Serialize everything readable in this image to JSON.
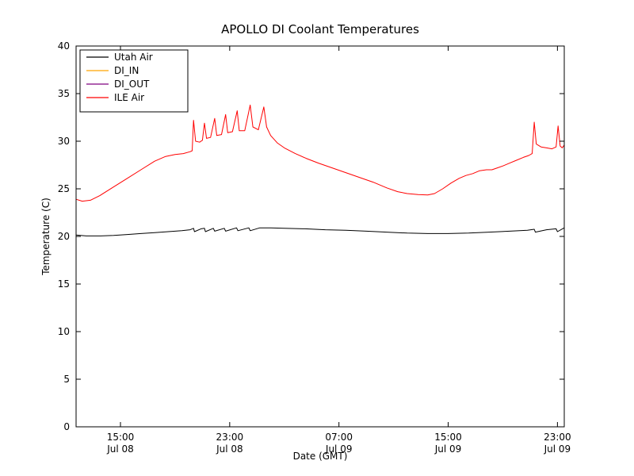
{
  "chart_data": {
    "type": "line",
    "title": "APOLLO DI Coolant Temperatures",
    "xlabel": "Date (GMT)",
    "ylabel": "Temperature (C)",
    "x_unit": "hours since Jul 08 00:00 GMT",
    "xlim": [
      11.75,
      47.5
    ],
    "ylim": [
      0,
      40
    ],
    "grid": false,
    "legend_position": "upper left",
    "yticks": [
      0,
      5,
      10,
      15,
      20,
      25,
      30,
      35,
      40
    ],
    "xticks": [
      {
        "value": 15,
        "label": "15:00",
        "sublabel": "Jul 08"
      },
      {
        "value": 23,
        "label": "23:00",
        "sublabel": "Jul 08"
      },
      {
        "value": 31,
        "label": "07:00",
        "sublabel": "Jul 09"
      },
      {
        "value": 39,
        "label": "15:00",
        "sublabel": "Jul 09"
      },
      {
        "value": 47,
        "label": "23:00",
        "sublabel": "Jul 09"
      }
    ],
    "series": [
      {
        "name": "Utah Air",
        "color": "#000000",
        "points": [
          [
            11.75,
            20.15
          ],
          [
            12.5,
            20.05
          ],
          [
            13.5,
            20.05
          ],
          [
            14.5,
            20.1
          ],
          [
            15.5,
            20.2
          ],
          [
            16.5,
            20.3
          ],
          [
            17.5,
            20.4
          ],
          [
            18.5,
            20.5
          ],
          [
            19.5,
            20.6
          ],
          [
            20.1,
            20.7
          ],
          [
            20.35,
            20.85
          ],
          [
            20.42,
            20.5
          ],
          [
            20.9,
            20.8
          ],
          [
            21.15,
            20.85
          ],
          [
            21.22,
            20.5
          ],
          [
            21.8,
            20.85
          ],
          [
            21.9,
            20.55
          ],
          [
            22.6,
            20.85
          ],
          [
            22.7,
            20.55
          ],
          [
            23.5,
            20.9
          ],
          [
            23.6,
            20.6
          ],
          [
            24.4,
            20.9
          ],
          [
            24.5,
            20.6
          ],
          [
            25.2,
            20.9
          ],
          [
            26.0,
            20.9
          ],
          [
            27.0,
            20.85
          ],
          [
            28.5,
            20.8
          ],
          [
            30.0,
            20.7
          ],
          [
            31.5,
            20.65
          ],
          [
            33.0,
            20.55
          ],
          [
            34.5,
            20.45
          ],
          [
            36.0,
            20.35
          ],
          [
            37.5,
            20.3
          ],
          [
            39.0,
            20.3
          ],
          [
            40.5,
            20.35
          ],
          [
            42.0,
            20.45
          ],
          [
            43.5,
            20.55
          ],
          [
            44.8,
            20.65
          ],
          [
            45.3,
            20.75
          ],
          [
            45.38,
            20.45
          ],
          [
            46.2,
            20.7
          ],
          [
            46.9,
            20.8
          ],
          [
            47.0,
            20.5
          ],
          [
            47.5,
            20.9
          ]
        ]
      },
      {
        "name": "DI_IN",
        "color": "#ffa500",
        "points": []
      },
      {
        "name": "DI_OUT",
        "color": "#800080",
        "points": []
      },
      {
        "name": "ILE Air",
        "color": "#ff0000",
        "points": [
          [
            11.75,
            23.9
          ],
          [
            12.2,
            23.7
          ],
          [
            12.8,
            23.8
          ],
          [
            13.5,
            24.3
          ],
          [
            14.5,
            25.2
          ],
          [
            15.5,
            26.1
          ],
          [
            16.5,
            27.0
          ],
          [
            17.5,
            27.9
          ],
          [
            18.3,
            28.4
          ],
          [
            19.0,
            28.6
          ],
          [
            19.6,
            28.7
          ],
          [
            20.1,
            28.9
          ],
          [
            20.25,
            29.0
          ],
          [
            20.35,
            32.2
          ],
          [
            20.5,
            30.0
          ],
          [
            20.8,
            29.9
          ],
          [
            21.0,
            30.1
          ],
          [
            21.15,
            31.9
          ],
          [
            21.3,
            30.3
          ],
          [
            21.6,
            30.4
          ],
          [
            21.9,
            32.4
          ],
          [
            22.05,
            30.6
          ],
          [
            22.4,
            30.7
          ],
          [
            22.7,
            32.8
          ],
          [
            22.85,
            30.9
          ],
          [
            23.2,
            31.0
          ],
          [
            23.55,
            33.2
          ],
          [
            23.7,
            31.1
          ],
          [
            24.1,
            31.1
          ],
          [
            24.5,
            33.8
          ],
          [
            24.7,
            31.5
          ],
          [
            25.1,
            31.2
          ],
          [
            25.5,
            33.6
          ],
          [
            25.7,
            31.5
          ],
          [
            26.0,
            30.6
          ],
          [
            26.5,
            29.8
          ],
          [
            27.0,
            29.3
          ],
          [
            27.8,
            28.7
          ],
          [
            28.6,
            28.2
          ],
          [
            29.5,
            27.7
          ],
          [
            30.5,
            27.2
          ],
          [
            31.5,
            26.7
          ],
          [
            32.5,
            26.2
          ],
          [
            33.5,
            25.7
          ],
          [
            34.5,
            25.1
          ],
          [
            35.3,
            24.7
          ],
          [
            36.0,
            24.5
          ],
          [
            36.8,
            24.4
          ],
          [
            37.5,
            24.35
          ],
          [
            38.0,
            24.5
          ],
          [
            38.6,
            25.0
          ],
          [
            39.2,
            25.6
          ],
          [
            39.8,
            26.1
          ],
          [
            40.3,
            26.4
          ],
          [
            40.8,
            26.6
          ],
          [
            41.3,
            26.9
          ],
          [
            41.8,
            27.0
          ],
          [
            42.2,
            27.0
          ],
          [
            42.6,
            27.2
          ],
          [
            43.0,
            27.4
          ],
          [
            43.5,
            27.7
          ],
          [
            44.0,
            28.0
          ],
          [
            44.5,
            28.3
          ],
          [
            44.9,
            28.5
          ],
          [
            45.15,
            28.7
          ],
          [
            45.3,
            32.0
          ],
          [
            45.45,
            29.7
          ],
          [
            45.8,
            29.4
          ],
          [
            46.2,
            29.3
          ],
          [
            46.6,
            29.2
          ],
          [
            46.9,
            29.4
          ],
          [
            47.05,
            31.6
          ],
          [
            47.2,
            29.5
          ],
          [
            47.35,
            29.3
          ],
          [
            47.5,
            29.6
          ]
        ]
      }
    ]
  }
}
